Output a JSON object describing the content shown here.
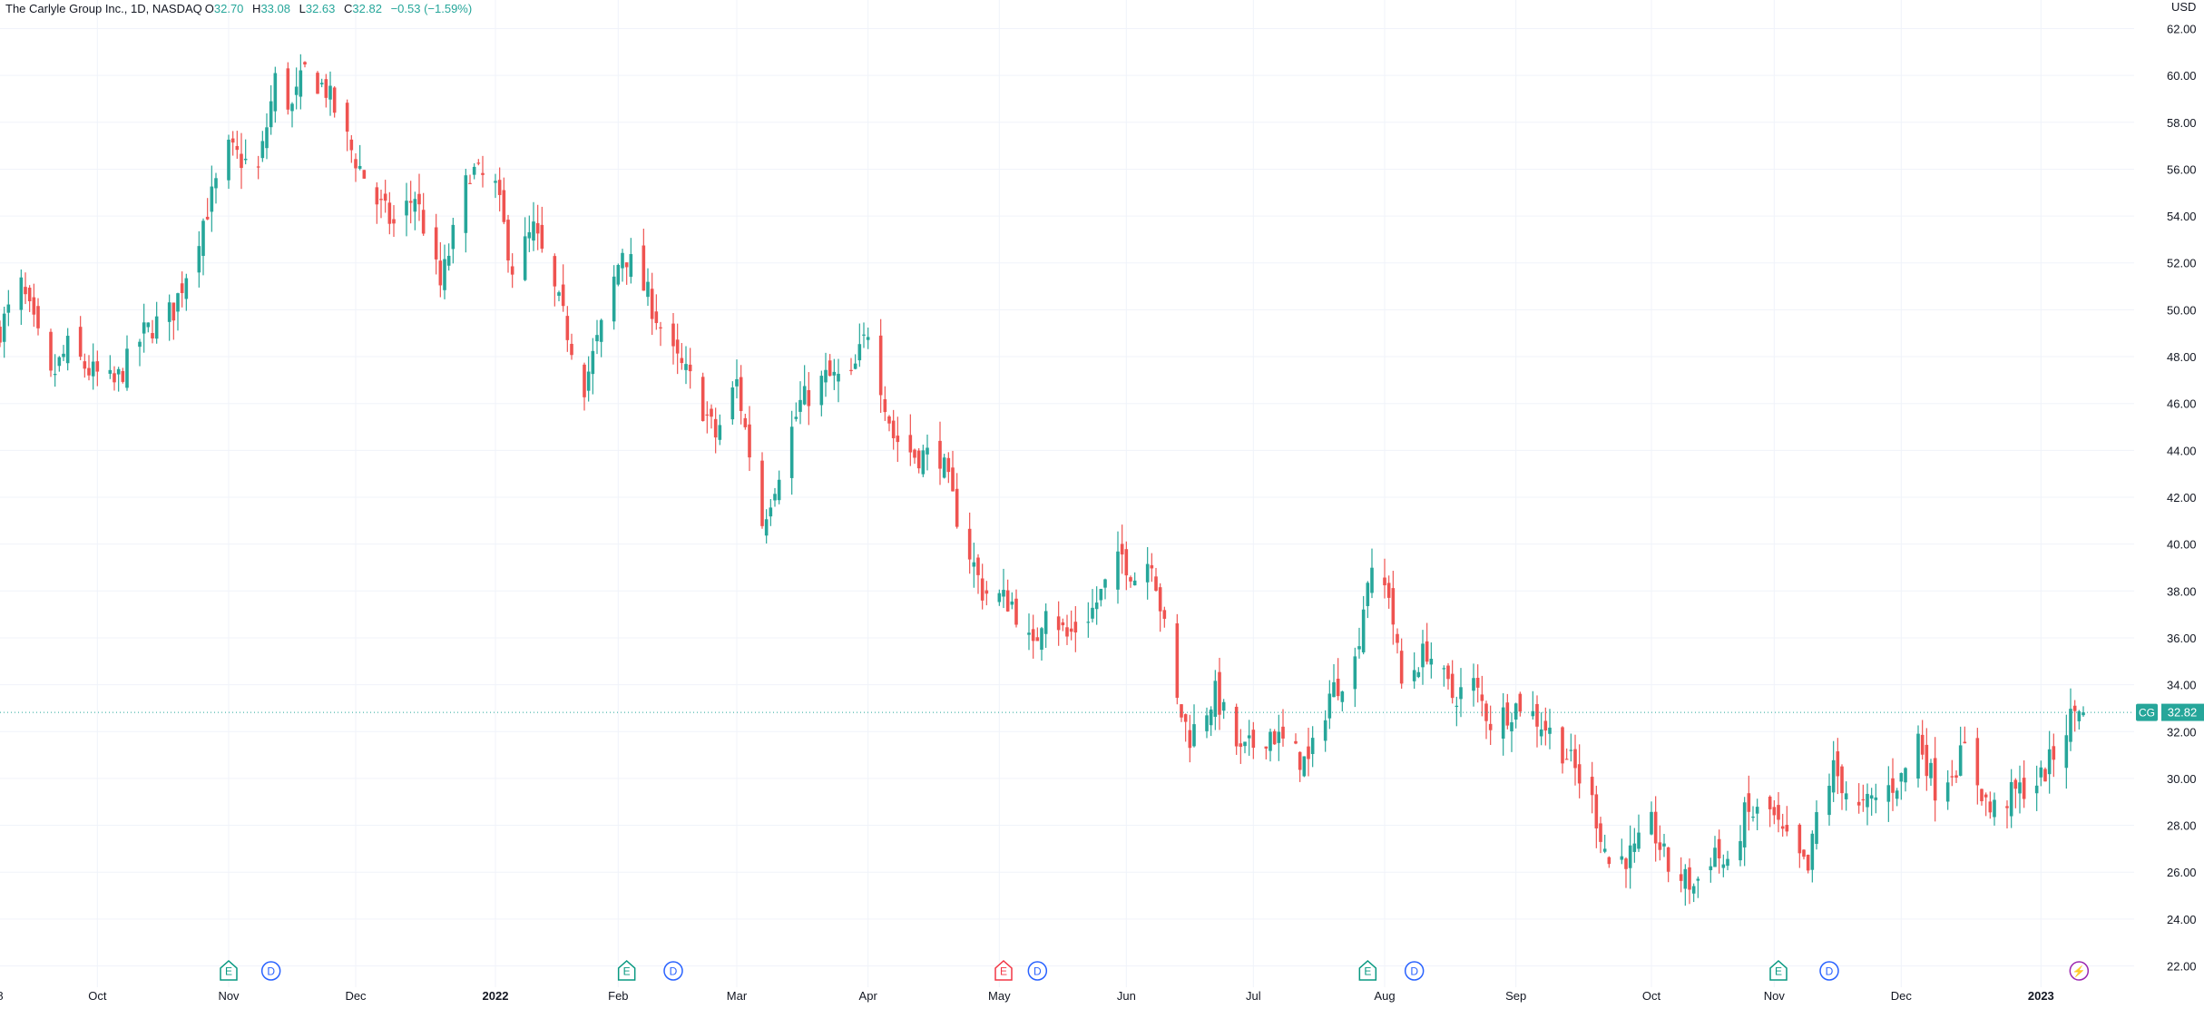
{
  "symbol_legend": {
    "name": "The Carlyle Group Inc., 1D, NASDAQ",
    "o_label": "O",
    "o_value": "32.70",
    "h_label": "H",
    "h_value": "33.08",
    "l_label": "L",
    "l_value": "32.63",
    "c_label": "C",
    "c_value": "32.82",
    "change": "−0.53 (−1.59%)"
  },
  "price_scale": {
    "currency": "USD",
    "ticks": [
      "62.00",
      "60.00",
      "58.00",
      "56.00",
      "54.00",
      "52.00",
      "50.00",
      "48.00",
      "46.00",
      "44.00",
      "42.00",
      "40.00",
      "38.00",
      "36.00",
      "34.00",
      "32.00",
      "30.00",
      "28.00",
      "26.00",
      "24.00",
      "22.00"
    ],
    "last_price_label": "32.82",
    "last_price": 32.82,
    "ticker_badge": "CG"
  },
  "time_scale": {
    "labels": [
      {
        "text": "8",
        "date": "2021-09-08"
      },
      {
        "text": "Oct",
        "date": "2021-10-01"
      },
      {
        "text": "Nov",
        "date": "2021-11-01"
      },
      {
        "text": "Dec",
        "date": "2021-12-01"
      },
      {
        "text": "2022",
        "date": "2022-01-03",
        "bold": true
      },
      {
        "text": "Feb",
        "date": "2022-02-01"
      },
      {
        "text": "Mar",
        "date": "2022-03-01"
      },
      {
        "text": "Apr",
        "date": "2022-04-01"
      },
      {
        "text": "May",
        "date": "2022-05-02"
      },
      {
        "text": "Jun",
        "date": "2022-06-01"
      },
      {
        "text": "Jul",
        "date": "2022-07-01"
      },
      {
        "text": "Aug",
        "date": "2022-08-01"
      },
      {
        "text": "Sep",
        "date": "2022-09-01"
      },
      {
        "text": "Oct",
        "date": "2022-10-03"
      },
      {
        "text": "Nov",
        "date": "2022-11-01"
      },
      {
        "text": "Dec",
        "date": "2022-12-01"
      },
      {
        "text": "2023",
        "date": "2023-01-03",
        "bold": true
      }
    ]
  },
  "event_markers": [
    {
      "type": "E",
      "label": "E",
      "date": "2021-11-01",
      "color": "#089981"
    },
    {
      "type": "D",
      "label": "D",
      "date": "2021-11-11",
      "color": "#2962ff"
    },
    {
      "type": "E",
      "label": "E",
      "date": "2022-02-03",
      "color": "#089981"
    },
    {
      "type": "D",
      "label": "D",
      "date": "2022-02-14",
      "color": "#2962ff"
    },
    {
      "type": "E",
      "label": "E",
      "date": "2022-05-03",
      "color": "#f23645"
    },
    {
      "type": "D",
      "label": "D",
      "date": "2022-05-11",
      "color": "#2962ff"
    },
    {
      "type": "E",
      "label": "E",
      "date": "2022-07-28",
      "color": "#089981"
    },
    {
      "type": "D",
      "label": "D",
      "date": "2022-08-08",
      "color": "#2962ff"
    },
    {
      "type": "E",
      "label": "E",
      "date": "2022-11-02",
      "color": "#089981"
    },
    {
      "type": "D",
      "label": "D",
      "date": "2022-11-14",
      "color": "#2962ff"
    },
    {
      "type": "S",
      "label": "⚡",
      "date": "2023-01-12",
      "color": "#9c27b0"
    }
  ],
  "colors": {
    "up": "#26a69a",
    "down": "#ef5350",
    "grid": "#f0f3fa",
    "text": "#131722",
    "last_line": "#26a69a"
  },
  "chart_data": {
    "type": "candlestick",
    "title": "The Carlyle Group Inc., 1D, NASDAQ",
    "ylabel": "USD",
    "ylim": [
      21.4,
      62.6
    ],
    "x_range": [
      "2021-09-08",
      "2023-01-25"
    ],
    "grid": true,
    "anchors": [
      {
        "date": "2021-09-08",
        "close": 49.2
      },
      {
        "date": "2021-09-13",
        "close": 51.0
      },
      {
        "date": "2021-09-20",
        "close": 47.0
      },
      {
        "date": "2021-09-24",
        "close": 48.4
      },
      {
        "date": "2021-09-29",
        "close": 47.4
      },
      {
        "date": "2021-10-05",
        "close": 46.8
      },
      {
        "date": "2021-10-12",
        "close": 49.0
      },
      {
        "date": "2021-10-19",
        "close": 50.0
      },
      {
        "date": "2021-10-26",
        "close": 53.8
      },
      {
        "date": "2021-11-01",
        "close": 56.8
      },
      {
        "date": "2021-11-08",
        "close": 55.9
      },
      {
        "date": "2021-11-12",
        "close": 59.8
      },
      {
        "date": "2021-11-16",
        "close": 58.6
      },
      {
        "date": "2021-11-19",
        "close": 60.2
      },
      {
        "date": "2021-11-24",
        "close": 59.4
      },
      {
        "date": "2021-11-30",
        "close": 56.8
      },
      {
        "date": "2021-12-06",
        "close": 54.6
      },
      {
        "date": "2021-12-10",
        "close": 53.6
      },
      {
        "date": "2021-12-15",
        "close": 54.9
      },
      {
        "date": "2021-12-21",
        "close": 51.0
      },
      {
        "date": "2021-12-28",
        "close": 56.0
      },
      {
        "date": "2022-01-03",
        "close": 55.2
      },
      {
        "date": "2022-01-07",
        "close": 51.8
      },
      {
        "date": "2022-01-12",
        "close": 53.4
      },
      {
        "date": "2022-01-18",
        "close": 50.2
      },
      {
        "date": "2022-01-24",
        "close": 46.8
      },
      {
        "date": "2022-01-28",
        "close": 49.2
      },
      {
        "date": "2022-02-02",
        "close": 52.6
      },
      {
        "date": "2022-02-08",
        "close": 50.6
      },
      {
        "date": "2022-02-14",
        "close": 48.0
      },
      {
        "date": "2022-02-18",
        "close": 47.0
      },
      {
        "date": "2022-02-24",
        "close": 44.6
      },
      {
        "date": "2022-03-01",
        "close": 46.9
      },
      {
        "date": "2022-03-07",
        "close": 40.9
      },
      {
        "date": "2022-03-11",
        "close": 43.2
      },
      {
        "date": "2022-03-16",
        "close": 46.0
      },
      {
        "date": "2022-03-22",
        "close": 47.1
      },
      {
        "date": "2022-03-28",
        "close": 47.0
      },
      {
        "date": "2022-04-01",
        "close": 49.2
      },
      {
        "date": "2022-04-07",
        "close": 44.6
      },
      {
        "date": "2022-04-12",
        "close": 43.8
      },
      {
        "date": "2022-04-18",
        "close": 43.8
      },
      {
        "date": "2022-04-22",
        "close": 41.2
      },
      {
        "date": "2022-04-28",
        "close": 38.0
      },
      {
        "date": "2022-05-05",
        "close": 37.5
      },
      {
        "date": "2022-05-10",
        "close": 35.4
      },
      {
        "date": "2022-05-13",
        "close": 37.6
      },
      {
        "date": "2022-05-18",
        "close": 36.0
      },
      {
        "date": "2022-05-24",
        "close": 37.2
      },
      {
        "date": "2022-05-31",
        "close": 39.5
      },
      {
        "date": "2022-06-03",
        "close": 38.6
      },
      {
        "date": "2022-06-07",
        "close": 39.5
      },
      {
        "date": "2022-06-13",
        "close": 33.2
      },
      {
        "date": "2022-06-16",
        "close": 31.8
      },
      {
        "date": "2022-06-22",
        "close": 33.6
      },
      {
        "date": "2022-06-28",
        "close": 31.0
      },
      {
        "date": "2022-07-05",
        "close": 32.0
      },
      {
        "date": "2022-07-11",
        "close": 31.0
      },
      {
        "date": "2022-07-14",
        "close": 30.6
      },
      {
        "date": "2022-07-19",
        "close": 33.6
      },
      {
        "date": "2022-07-25",
        "close": 35.0
      },
      {
        "date": "2022-07-28",
        "close": 38.6
      },
      {
        "date": "2022-08-02",
        "close": 38.0
      },
      {
        "date": "2022-08-05",
        "close": 34.0
      },
      {
        "date": "2022-08-11",
        "close": 35.5
      },
      {
        "date": "2022-08-17",
        "close": 33.5
      },
      {
        "date": "2022-08-22",
        "close": 34.0
      },
      {
        "date": "2022-08-26",
        "close": 32.4
      },
      {
        "date": "2022-09-02",
        "close": 33.2
      },
      {
        "date": "2022-09-08",
        "close": 32.2
      },
      {
        "date": "2022-09-13",
        "close": 31.0
      },
      {
        "date": "2022-09-19",
        "close": 29.0
      },
      {
        "date": "2022-09-23",
        "close": 26.4
      },
      {
        "date": "2022-09-29",
        "close": 26.8
      },
      {
        "date": "2022-10-03",
        "close": 28.0
      },
      {
        "date": "2022-10-07",
        "close": 26.2
      },
      {
        "date": "2022-10-13",
        "close": 25.4
      },
      {
        "date": "2022-10-18",
        "close": 27.0
      },
      {
        "date": "2022-10-21",
        "close": 26.0
      },
      {
        "date": "2022-10-25",
        "close": 28.4
      },
      {
        "date": "2022-10-31",
        "close": 28.6
      },
      {
        "date": "2022-11-03",
        "close": 27.5
      },
      {
        "date": "2022-11-09",
        "close": 26.0
      },
      {
        "date": "2022-11-11",
        "close": 28.4
      },
      {
        "date": "2022-11-15",
        "close": 30.4
      },
      {
        "date": "2022-11-21",
        "close": 28.6
      },
      {
        "date": "2022-11-28",
        "close": 29.6
      },
      {
        "date": "2022-12-01",
        "close": 30.0
      },
      {
        "date": "2022-12-05",
        "close": 31.8
      },
      {
        "date": "2022-12-09",
        "close": 29.6
      },
      {
        "date": "2022-12-14",
        "close": 30.6
      },
      {
        "date": "2022-12-16",
        "close": 31.2
      },
      {
        "date": "2022-12-22",
        "close": 28.6
      },
      {
        "date": "2022-12-28",
        "close": 29.4
      },
      {
        "date": "2023-01-03",
        "close": 30.0
      },
      {
        "date": "2023-01-06",
        "close": 31.0
      },
      {
        "date": "2023-01-10",
        "close": 32.6
      },
      {
        "date": "2023-01-12",
        "close": 33.2
      },
      {
        "date": "2023-01-13",
        "close": 32.82
      }
    ],
    "last_bar": {
      "open": 32.7,
      "high": 33.08,
      "low": 32.63,
      "close": 32.82
    }
  }
}
